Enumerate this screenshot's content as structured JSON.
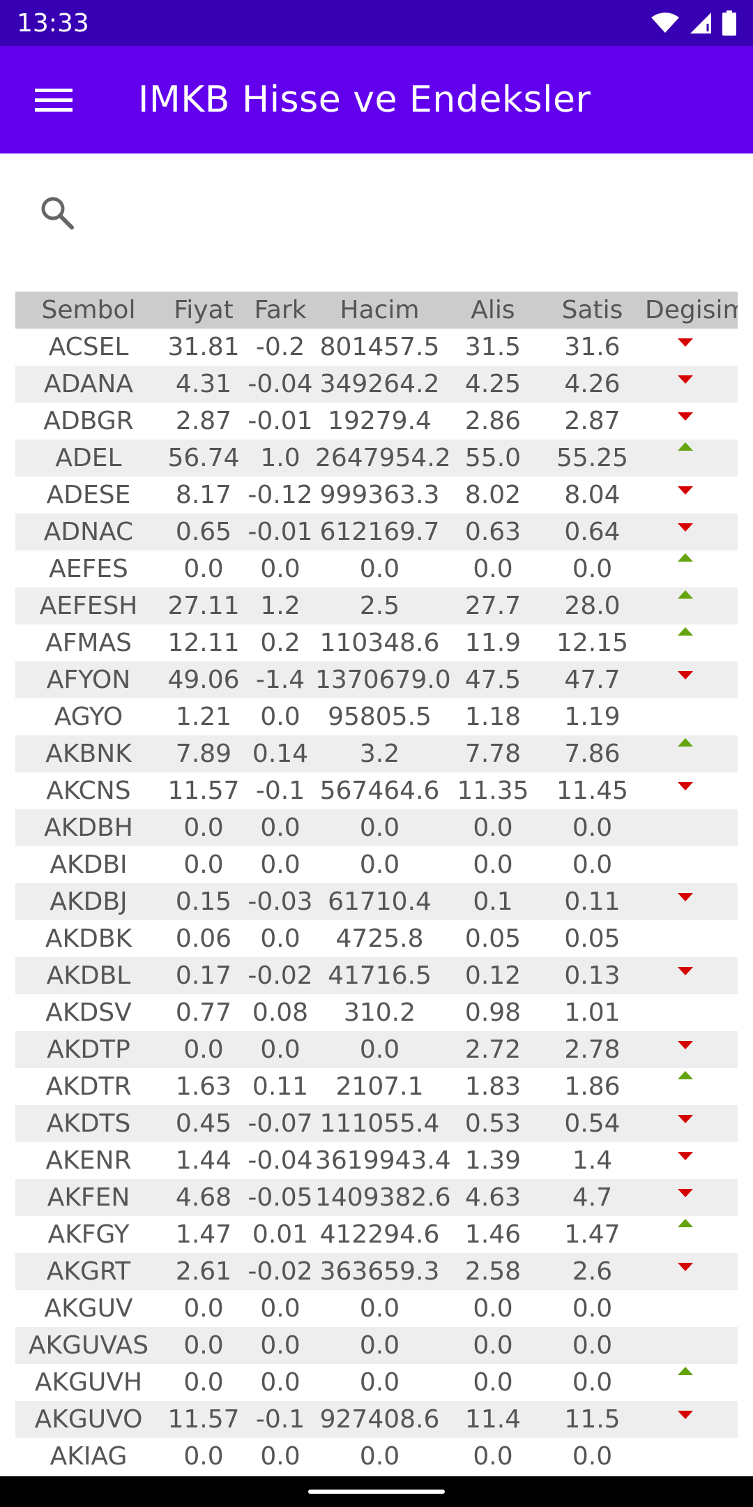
{
  "status": {
    "time": "13:33"
  },
  "app_bar": {
    "title": "IMKB Hisse ve Endeksler"
  },
  "search": {
    "value": "",
    "placeholder": ""
  },
  "colors": {
    "status_bar": "#3700b3",
    "app_bar": "#6200ee",
    "down": "#d50000",
    "up": "#64a40f",
    "header_bg": "#cccccc",
    "alt_row_bg": "#eeeeee"
  },
  "table": {
    "headers": [
      "Sembol",
      "Fiyat",
      "Fark",
      "Hacim",
      "Alis",
      "Satis",
      "Degisim"
    ],
    "rows": [
      [
        "ACSEL",
        "31.81",
        "-0.2",
        "801457.5",
        "31.5",
        "31.6",
        "down"
      ],
      [
        "ADANA",
        "4.31",
        "-0.04",
        "349264.2",
        "4.25",
        "4.26",
        "down"
      ],
      [
        "ADBGR",
        "2.87",
        "-0.01",
        "19279.4",
        "2.86",
        "2.87",
        "down"
      ],
      [
        "ADEL",
        "56.74",
        "1.0",
        "2647954.2",
        "55.0",
        "55.25",
        "up"
      ],
      [
        "ADESE",
        "8.17",
        "-0.12",
        "999363.3",
        "8.02",
        "8.04",
        "down"
      ],
      [
        "ADNAC",
        "0.65",
        "-0.01",
        "612169.7",
        "0.63",
        "0.64",
        "down"
      ],
      [
        "AEFES",
        "0.0",
        "0.0",
        "0.0",
        "0.0",
        "0.0",
        "up"
      ],
      [
        "AEFESH",
        "27.11",
        "1.2",
        "2.5",
        "27.7",
        "28.0",
        "up"
      ],
      [
        "AFMAS",
        "12.11",
        "0.2",
        "110348.6",
        "11.9",
        "12.15",
        "up"
      ],
      [
        "AFYON",
        "49.06",
        "-1.4",
        "1370679.0",
        "47.5",
        "47.7",
        "down"
      ],
      [
        "AGYO",
        "1.21",
        "0.0",
        "95805.5",
        "1.18",
        "1.19",
        "none"
      ],
      [
        "AKBNK",
        "7.89",
        "0.14",
        "3.2",
        "7.78",
        "7.86",
        "up"
      ],
      [
        "AKCNS",
        "11.57",
        "-0.1",
        "567464.6",
        "11.35",
        "11.45",
        "down"
      ],
      [
        "AKDBH",
        "0.0",
        "0.0",
        "0.0",
        "0.0",
        "0.0",
        "none"
      ],
      [
        "AKDBI",
        "0.0",
        "0.0",
        "0.0",
        "0.0",
        "0.0",
        "none"
      ],
      [
        "AKDBJ",
        "0.15",
        "-0.03",
        "61710.4",
        "0.1",
        "0.11",
        "down"
      ],
      [
        "AKDBK",
        "0.06",
        "0.0",
        "4725.8",
        "0.05",
        "0.05",
        "none"
      ],
      [
        "AKDBL",
        "0.17",
        "-0.02",
        "41716.5",
        "0.12",
        "0.13",
        "down"
      ],
      [
        "AKDSV",
        "0.77",
        "0.08",
        "310.2",
        "0.98",
        "1.01",
        "none"
      ],
      [
        "AKDTP",
        "0.0",
        "0.0",
        "0.0",
        "2.72",
        "2.78",
        "down"
      ],
      [
        "AKDTR",
        "1.63",
        "0.11",
        "2107.1",
        "1.83",
        "1.86",
        "up"
      ],
      [
        "AKDTS",
        "0.45",
        "-0.07",
        "111055.4",
        "0.53",
        "0.54",
        "down"
      ],
      [
        "AKENR",
        "1.44",
        "-0.04",
        "3619943.4",
        "1.39",
        "1.4",
        "down"
      ],
      [
        "AKFEN",
        "4.68",
        "-0.05",
        "1409382.6",
        "4.63",
        "4.7",
        "down"
      ],
      [
        "AKFGY",
        "1.47",
        "0.01",
        "412294.6",
        "1.46",
        "1.47",
        "up"
      ],
      [
        "AKGRT",
        "2.61",
        "-0.02",
        "363659.3",
        "2.58",
        "2.6",
        "down"
      ],
      [
        "AKGUV",
        "0.0",
        "0.0",
        "0.0",
        "0.0",
        "0.0",
        "none"
      ],
      [
        "AKGUVAS",
        "0.0",
        "0.0",
        "0.0",
        "0.0",
        "0.0",
        "none"
      ],
      [
        "AKGUVH",
        "0.0",
        "0.0",
        "0.0",
        "0.0",
        "0.0",
        "up"
      ],
      [
        "AKGUVO",
        "11.57",
        "-0.1",
        "927408.6",
        "11.4",
        "11.5",
        "down"
      ],
      [
        "AKIAG",
        "0.0",
        "0.0",
        "0.0",
        "0.0",
        "0.0",
        "none"
      ]
    ]
  }
}
